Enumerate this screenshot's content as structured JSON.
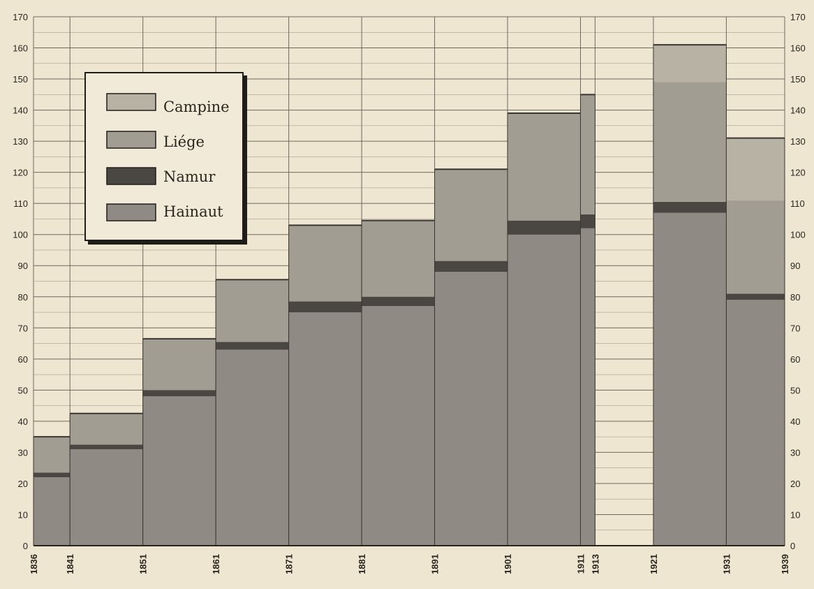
{
  "colors": {
    "background": "#efe6d2",
    "grid": "#6f685c",
    "Campine": "#b8b2a5",
    "Liége": "#a29d92",
    "Namur": "#4a4742",
    "Hainaut": "#8f8b84"
  },
  "chart_data": {
    "type": "bar",
    "subtype": "stacked-step",
    "title": "",
    "xlabel": "",
    "ylabel": "",
    "ylim": [
      0,
      170
    ],
    "y_ticks": [
      "0",
      "10",
      "20",
      "30",
      "40",
      "50",
      "60",
      "70",
      "80",
      "90",
      "100",
      "110",
      "120",
      "130",
      "140",
      "150",
      "160",
      "170"
    ],
    "y_axis_sides": "left and right",
    "x_tick_labels": [
      "1836",
      "1841",
      "1851",
      "1861",
      "1871",
      "1881",
      "1891",
      "1901",
      "1911",
      "1913",
      "1921",
      "1931",
      "1939"
    ],
    "grid": true,
    "legend_position": "top-left",
    "legend": [
      "Campine",
      "Liége",
      "Namur",
      "Hainaut"
    ],
    "periods": [
      {
        "from": "1836",
        "to": "1841",
        "Hainaut": 22,
        "Namur": 1.5,
        "Liége": 11.5,
        "Campine": 0
      },
      {
        "from": "1841",
        "to": "1851",
        "Hainaut": 31,
        "Namur": 1.5,
        "Liége": 10,
        "Campine": 0
      },
      {
        "from": "1851",
        "to": "1861",
        "Hainaut": 48,
        "Namur": 2,
        "Liége": 16.5,
        "Campine": 0
      },
      {
        "from": "1861",
        "to": "1871",
        "Hainaut": 63,
        "Namur": 2.5,
        "Liége": 20,
        "Campine": 0
      },
      {
        "from": "1871",
        "to": "1881",
        "Hainaut": 75,
        "Namur": 3.5,
        "Liége": 24.5,
        "Campine": 0
      },
      {
        "from": "1881",
        "to": "1891",
        "Hainaut": 77,
        "Namur": 3,
        "Liége": 24.5,
        "Campine": 0
      },
      {
        "from": "1891",
        "to": "1901",
        "Hainaut": 88,
        "Namur": 3.5,
        "Liége": 29.5,
        "Campine": 0
      },
      {
        "from": "1901",
        "to": "1911",
        "Hainaut": 100,
        "Namur": 4.5,
        "Liége": 34.5,
        "Campine": 0
      },
      {
        "from": "1911",
        "to": "1913",
        "Hainaut": 102,
        "Namur": 4.5,
        "Liége": 38.5,
        "Campine": 0
      },
      {
        "from": "1921",
        "to": "1931",
        "Hainaut": 107,
        "Namur": 3.5,
        "Liége": 38.5,
        "Campine": 12
      },
      {
        "from": "1931",
        "to": "1939",
        "Hainaut": 79,
        "Namur": 2,
        "Liége": 30,
        "Campine": 20
      }
    ]
  }
}
